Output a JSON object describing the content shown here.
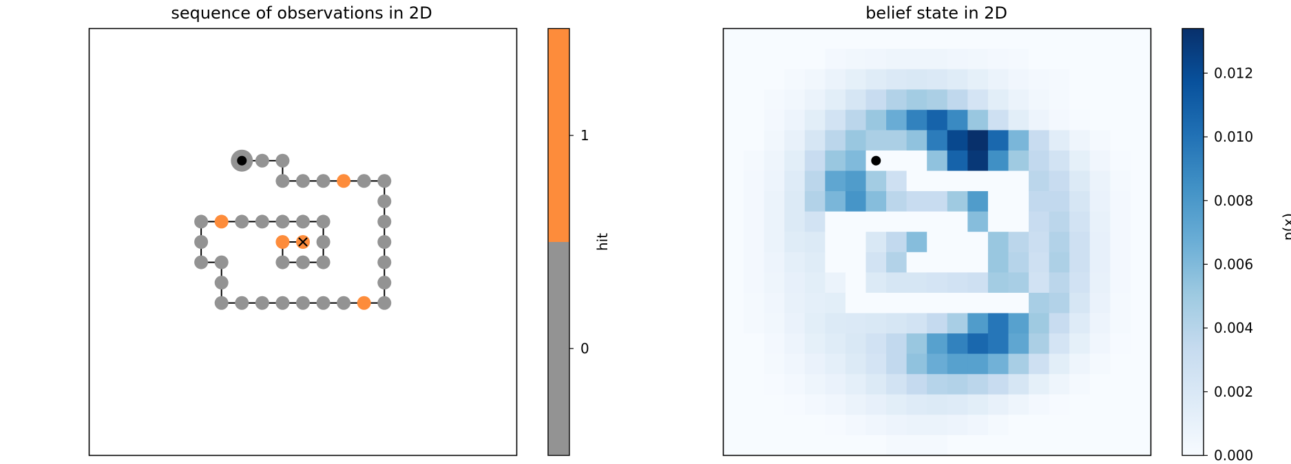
{
  "chart_data": [
    {
      "type": "scatter",
      "title": "sequence of observations in 2D",
      "xlabel": "",
      "ylabel": "",
      "grid": false,
      "xlim": [
        -0.5,
        20.5
      ],
      "ylim": [
        20.5,
        -0.5
      ],
      "colorbar": {
        "label": "hit",
        "ticks": [
          0,
          1
        ],
        "tick_labels": [
          "0",
          "1"
        ],
        "colors": {
          "0": "#939393",
          "1": "#fd8c3b"
        },
        "range": [
          -0.5,
          1.5
        ]
      },
      "start": {
        "x": 7,
        "y": 6
      },
      "end": {
        "x": 10,
        "y": 10
      },
      "points": [
        {
          "x": 7,
          "y": 6,
          "hit": 0
        },
        {
          "x": 8,
          "y": 6,
          "hit": 0
        },
        {
          "x": 9,
          "y": 6,
          "hit": 0
        },
        {
          "x": 9,
          "y": 7,
          "hit": 0
        },
        {
          "x": 10,
          "y": 7,
          "hit": 0
        },
        {
          "x": 11,
          "y": 7,
          "hit": 0
        },
        {
          "x": 12,
          "y": 7,
          "hit": 1
        },
        {
          "x": 13,
          "y": 7,
          "hit": 0
        },
        {
          "x": 14,
          "y": 7,
          "hit": 0
        },
        {
          "x": 14,
          "y": 8,
          "hit": 0
        },
        {
          "x": 14,
          "y": 9,
          "hit": 0
        },
        {
          "x": 14,
          "y": 10,
          "hit": 0
        },
        {
          "x": 14,
          "y": 11,
          "hit": 0
        },
        {
          "x": 14,
          "y": 12,
          "hit": 0
        },
        {
          "x": 14,
          "y": 13,
          "hit": 0
        },
        {
          "x": 13,
          "y": 13,
          "hit": 1
        },
        {
          "x": 12,
          "y": 13,
          "hit": 0
        },
        {
          "x": 11,
          "y": 13,
          "hit": 0
        },
        {
          "x": 10,
          "y": 13,
          "hit": 0
        },
        {
          "x": 9,
          "y": 13,
          "hit": 0
        },
        {
          "x": 8,
          "y": 13,
          "hit": 0
        },
        {
          "x": 7,
          "y": 13,
          "hit": 0
        },
        {
          "x": 6,
          "y": 13,
          "hit": 0
        },
        {
          "x": 6,
          "y": 12,
          "hit": 0
        },
        {
          "x": 6,
          "y": 11,
          "hit": 0
        },
        {
          "x": 5,
          "y": 11,
          "hit": 0
        },
        {
          "x": 5,
          "y": 10,
          "hit": 0
        },
        {
          "x": 5,
          "y": 9,
          "hit": 0
        },
        {
          "x": 6,
          "y": 9,
          "hit": 1
        },
        {
          "x": 7,
          "y": 9,
          "hit": 0
        },
        {
          "x": 8,
          "y": 9,
          "hit": 0
        },
        {
          "x": 9,
          "y": 9,
          "hit": 0
        },
        {
          "x": 10,
          "y": 9,
          "hit": 0
        },
        {
          "x": 11,
          "y": 9,
          "hit": 0
        },
        {
          "x": 11,
          "y": 10,
          "hit": 0
        },
        {
          "x": 11,
          "y": 11,
          "hit": 0
        },
        {
          "x": 10,
          "y": 11,
          "hit": 0
        },
        {
          "x": 9,
          "y": 11,
          "hit": 0
        },
        {
          "x": 9,
          "y": 10,
          "hit": 1
        },
        {
          "x": 10,
          "y": 10,
          "hit": 1
        }
      ]
    },
    {
      "type": "heatmap",
      "title": "belief state in 2D",
      "xlabel": "",
      "ylabel": "",
      "grid": false,
      "colormap": "Blues",
      "vmin": 0,
      "vmax": 0.0134,
      "marker": {
        "x": 7,
        "y": 6
      },
      "colorbar": {
        "label": "p(x)",
        "ticks": [
          0,
          0.002,
          0.004,
          0.006,
          0.008,
          0.01,
          0.012
        ],
        "tick_labels": [
          "0.000",
          "0.002",
          "0.004",
          "0.006",
          "0.008",
          "0.010",
          "0.012"
        ]
      },
      "values": [
        [
          0,
          0,
          0,
          0,
          0,
          0,
          0,
          0,
          0,
          0,
          0,
          0,
          0,
          0,
          0,
          0,
          0,
          0,
          0,
          0,
          0
        ],
        [
          0,
          0,
          0,
          0,
          0,
          0.0003,
          0.0004,
          0.0005,
          0.0006,
          0.0006,
          0.0006,
          0.0005,
          0.0004,
          0.0003,
          0.0002,
          0,
          0,
          0,
          0,
          0,
          0
        ],
        [
          0,
          0,
          0,
          0.0002,
          0.0004,
          0.0008,
          0.0012,
          0.0016,
          0.0019,
          0.002,
          0.0019,
          0.0016,
          0.0012,
          0.0008,
          0.0005,
          0.0003,
          0.0002,
          0,
          0,
          0,
          0
        ],
        [
          0,
          0,
          0.0002,
          0.0004,
          0.0008,
          0.0014,
          0.0022,
          0.0032,
          0.0042,
          0.0048,
          0.0045,
          0.0036,
          0.0024,
          0.0014,
          0.0008,
          0.0004,
          0.0002,
          0,
          0,
          0,
          0
        ],
        [
          0,
          0,
          0.0003,
          0.0007,
          0.0014,
          0.0025,
          0.0038,
          0.0052,
          0.0068,
          0.0092,
          0.0108,
          0.0088,
          0.0052,
          0.0028,
          0.0014,
          0.0007,
          0.0003,
          0.0001,
          0,
          0,
          0
        ],
        [
          0,
          0,
          0.0004,
          0.001,
          0.0022,
          0.0038,
          0.0052,
          0.0045,
          0.0045,
          0.0055,
          0.0095,
          0.0122,
          0.0134,
          0.0105,
          0.0062,
          0.0032,
          0.0015,
          0.0006,
          0.0002,
          0,
          0
        ],
        [
          0,
          0.0002,
          0.0006,
          0.0014,
          0.0032,
          0.0052,
          0.006,
          0,
          0,
          0,
          0.0055,
          0.0108,
          0.013,
          0.0085,
          0.005,
          0.0035,
          0.0025,
          0.0012,
          0.0005,
          0.0001,
          0
        ],
        [
          0,
          0.0003,
          0.0007,
          0.0017,
          0.0038,
          0.0072,
          0.0078,
          0.0048,
          0.0028,
          0,
          0,
          0,
          0,
          0,
          0,
          0.0038,
          0.0032,
          0.0018,
          0.0008,
          0.0002,
          0
        ],
        [
          0,
          0.0003,
          0.0008,
          0.0018,
          0.0042,
          0.0062,
          0.0082,
          0.0058,
          0.0038,
          0.0032,
          0.0032,
          0.005,
          0.0078,
          0,
          0,
          0.0035,
          0.0035,
          0.0022,
          0.0009,
          0.0003,
          0
        ],
        [
          0,
          0.0003,
          0.0008,
          0.0018,
          0.0025,
          0,
          0,
          0,
          0,
          0,
          0,
          0,
          0.0058,
          0,
          0,
          0.0032,
          0.0038,
          0.0025,
          0.001,
          0.0003,
          0
        ],
        [
          0,
          0.0003,
          0.0008,
          0.0016,
          0.0018,
          0,
          0,
          0.002,
          0.0035,
          0.0058,
          0,
          0,
          0,
          0.0052,
          0.0038,
          0.003,
          0.0042,
          0.0028,
          0.0011,
          0.0003,
          0
        ],
        [
          0,
          0.0003,
          0.0007,
          0.0013,
          0.0016,
          0,
          0,
          0.0025,
          0.0042,
          0,
          0,
          0,
          0,
          0.0052,
          0.004,
          0.0028,
          0.0044,
          0.0028,
          0.0011,
          0.0003,
          0
        ],
        [
          0,
          0.0003,
          0.0006,
          0.0011,
          0.0014,
          0.0008,
          0,
          0.0018,
          0.0022,
          0.0022,
          0.0024,
          0.0026,
          0.0028,
          0.0048,
          0.0046,
          0.0026,
          0.0038,
          0.0026,
          0.001,
          0.0003,
          0
        ],
        [
          0,
          0.0002,
          0.0005,
          0.001,
          0.0013,
          0.0014,
          0,
          0,
          0,
          0,
          0,
          0,
          0,
          0,
          0,
          0.0046,
          0.0042,
          0.0022,
          0.0009,
          0.0002,
          0
        ],
        [
          0,
          0.0002,
          0.0004,
          0.0009,
          0.0014,
          0.0018,
          0.0019,
          0.002,
          0.0022,
          0.0025,
          0.0034,
          0.0046,
          0.0078,
          0.0098,
          0.0075,
          0.005,
          0.0032,
          0.0017,
          0.0007,
          0.0002,
          0
        ],
        [
          0,
          0,
          0.0003,
          0.0007,
          0.0012,
          0.0016,
          0.002,
          0.0026,
          0.0035,
          0.0052,
          0.0075,
          0.0092,
          0.0105,
          0.0098,
          0.0072,
          0.0045,
          0.0024,
          0.0012,
          0.0005,
          0.0001,
          0
        ],
        [
          0,
          0,
          0.0002,
          0.0005,
          0.0009,
          0.0013,
          0.0018,
          0.0024,
          0.0035,
          0.0055,
          0.0068,
          0.0075,
          0.0075,
          0.0065,
          0.0046,
          0.0028,
          0.0014,
          0.0006,
          0.0002,
          0,
          0
        ],
        [
          0,
          0,
          0.0001,
          0.0003,
          0.0006,
          0.0009,
          0.0013,
          0.0018,
          0.0025,
          0.0034,
          0.004,
          0.0042,
          0.0038,
          0.0032,
          0.0022,
          0.0012,
          0.0006,
          0.0002,
          0,
          0,
          0
        ],
        [
          0,
          0,
          0,
          0.0001,
          0.0003,
          0.0005,
          0.0008,
          0.0011,
          0.0014,
          0.0017,
          0.0018,
          0.0017,
          0.0014,
          0.001,
          0.0006,
          0.0003,
          0.0001,
          0,
          0,
          0,
          0
        ],
        [
          0,
          0,
          0,
          0,
          0,
          0.0001,
          0.0003,
          0.0005,
          0.0007,
          0.0008,
          0.0008,
          0.0007,
          0.0005,
          0.0002,
          0,
          0,
          0,
          0,
          0,
          0,
          0
        ],
        [
          0,
          0,
          0,
          0,
          0,
          0,
          0,
          0,
          0.0002,
          0.0002,
          0.0002,
          0,
          0,
          0,
          0,
          0,
          0,
          0,
          0,
          0,
          0
        ]
      ]
    }
  ]
}
